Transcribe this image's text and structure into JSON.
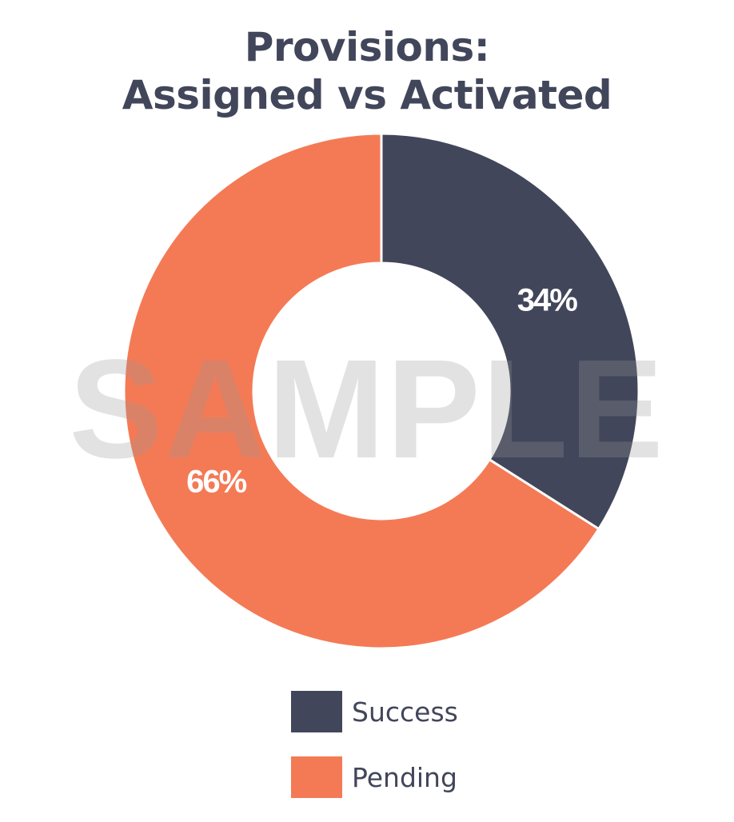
{
  "chart_data": {
    "type": "pie",
    "title": "Provisions:\nAssigned vs Activated",
    "title_lines": [
      "Provisions:",
      "Assigned vs Activated"
    ],
    "categories": [
      "Success",
      "Pending"
    ],
    "values": [
      34,
      66
    ],
    "value_labels": [
      "34%",
      "66%"
    ],
    "colors": [
      "#42465a",
      "#f47a55"
    ],
    "donut": true,
    "legend": "bottom",
    "watermark": "SAMPLE"
  }
}
